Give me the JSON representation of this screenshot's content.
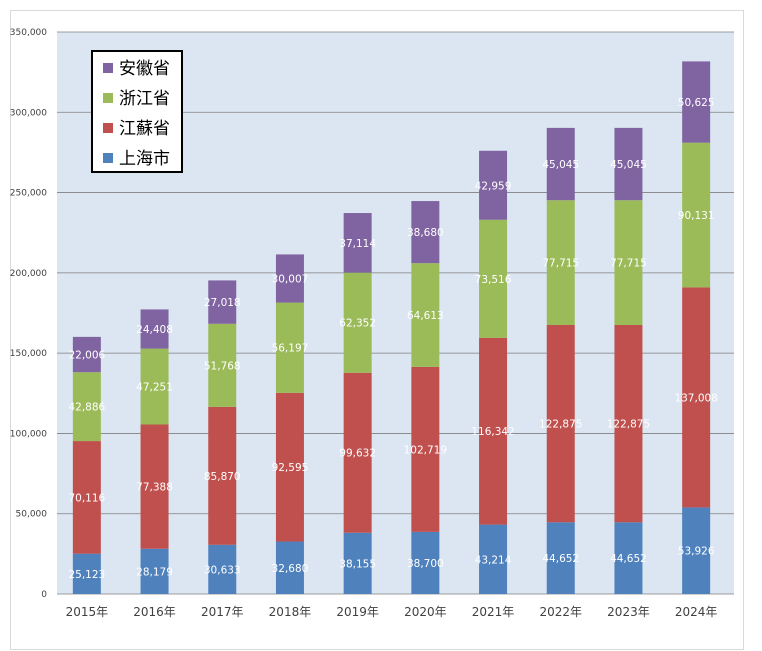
{
  "chart_data": {
    "type": "bar",
    "stacked": true,
    "categories": [
      "2015年",
      "2016年",
      "2017年",
      "2018年",
      "2019年",
      "2020年",
      "2021年",
      "2022年",
      "2023年",
      "2024年"
    ],
    "series": [
      {
        "name": "上海市",
        "color": "#4f81bd",
        "values": [
          25123,
          28179,
          30633,
          32680,
          38155,
          38700,
          43214,
          44652,
          44652,
          53926
        ],
        "labels": [
          "25,123",
          "28,179",
          "30,633",
          "32,680",
          "38,155",
          "38,700",
          "43,214",
          "44,652",
          "44,652",
          "53,926"
        ]
      },
      {
        "name": "江蘇省",
        "color": "#c0504d",
        "values": [
          70116,
          77388,
          85870,
          92595,
          99632,
          102719,
          116342,
          122875,
          122875,
          137008
        ],
        "labels": [
          "70,116",
          "77,388",
          "85,870",
          "92,595",
          "99,632",
          "102,719",
          "116,342",
          "122,875",
          "122,875",
          "137,008"
        ]
      },
      {
        "name": "浙江省",
        "color": "#9bbb59",
        "values": [
          42886,
          47251,
          51768,
          56197,
          62352,
          64613,
          73516,
          77715,
          77715,
          90131
        ],
        "labels": [
          "42,886",
          "47,251",
          "51,768",
          "56,197",
          "62,352",
          "64,613",
          "73,516",
          "77,715",
          "77,715",
          "90,131"
        ]
      },
      {
        "name": "安徽省",
        "color": "#8064a2",
        "values": [
          22006,
          24408,
          27018,
          30007,
          37114,
          38680,
          42959,
          45045,
          45045,
          50625
        ],
        "labels": [
          "22,006",
          "24,408",
          "27,018",
          "30,007",
          "37,114",
          "38,680",
          "42,959",
          "45,045",
          "45,045",
          "50,625"
        ]
      }
    ],
    "ylim": [
      0,
      350000
    ],
    "yticks": [
      0,
      50000,
      100000,
      150000,
      200000,
      250000,
      300000,
      350000
    ],
    "ytick_labels": [
      "0",
      "50,000",
      "100,000",
      "150,000",
      "200,000",
      "250,000",
      "300,000",
      "350,000"
    ],
    "legend_order": [
      "安徽省",
      "浙江省",
      "江蘇省",
      "上海市"
    ],
    "legend_position": "top-left",
    "grid": true,
    "plot_background": "#dce6f2",
    "gridline_color": "#7f7f7f",
    "title": "",
    "xlabel": "",
    "ylabel": ""
  }
}
